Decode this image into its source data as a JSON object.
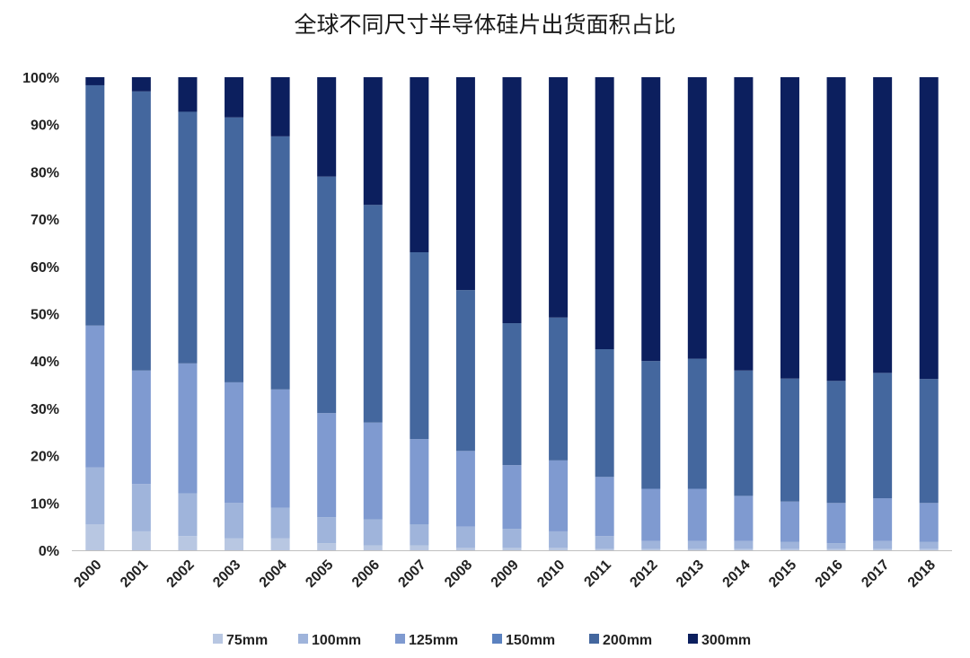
{
  "chart_data": {
    "type": "bar",
    "stacked": true,
    "title": "全球不同尺寸半导体硅片出货面积占比",
    "xlabel": "",
    "ylabel": "",
    "ylim": [
      0,
      100
    ],
    "y_tick_labels": [
      "0%",
      "10%",
      "20%",
      "30%",
      "40%",
      "50%",
      "60%",
      "70%",
      "80%",
      "90%",
      "100%"
    ],
    "grid": false,
    "legend_position": "bottom",
    "categories": [
      "2000",
      "2001",
      "2002",
      "2003",
      "2004",
      "2005",
      "2006",
      "2007",
      "2008",
      "2009",
      "2010",
      "2011",
      "2012",
      "2013",
      "2014",
      "2015",
      "2016",
      "2017",
      "2018"
    ],
    "series": [
      {
        "name": "75mm",
        "color": "#b8c7e2",
        "values": [
          5.5,
          4.0,
          3.0,
          2.5,
          2.5,
          1.5,
          1.0,
          1.0,
          0.5,
          0.5,
          0.5,
          0.3,
          0.3,
          0.3,
          0.3,
          0.3,
          0.3,
          0.3,
          0.3
        ]
      },
      {
        "name": "100mm",
        "color": "#9fb4db",
        "values": [
          12.0,
          10.0,
          9.0,
          7.5,
          6.5,
          5.5,
          5.5,
          4.5,
          4.5,
          4.0,
          3.5,
          2.7,
          1.7,
          1.7,
          1.7,
          1.5,
          1.2,
          1.7,
          1.5
        ]
      },
      {
        "name": "125mm",
        "color": "#7f9ad0",
        "values": [
          30.0,
          24.0,
          27.5,
          25.5,
          25.0,
          22.0,
          20.5,
          18.0,
          16.0,
          13.5,
          15.0,
          12.5,
          11.0,
          11.0,
          9.5,
          8.5,
          8.5,
          9.0,
          8.2
        ]
      },
      {
        "name": "150mm",
        "color": "#5b82c0",
        "values": [
          0,
          0,
          0,
          0,
          0,
          0,
          0,
          0,
          0,
          0,
          0,
          0,
          0,
          0,
          0,
          0,
          0,
          0,
          0
        ]
      },
      {
        "name": "200mm",
        "color": "#44679e",
        "values": [
          50.8,
          59.0,
          53.2,
          56.0,
          53.5,
          50.0,
          46.0,
          39.5,
          34.0,
          30.0,
          30.2,
          27.0,
          27.0,
          27.5,
          26.5,
          26.0,
          25.8,
          26.5,
          26.2
        ]
      },
      {
        "name": "300mm",
        "color": "#0c1f5e",
        "values": [
          1.7,
          3.0,
          7.3,
          8.5,
          12.5,
          21.0,
          27.0,
          37.0,
          45.0,
          52.0,
          50.8,
          57.5,
          60.0,
          59.5,
          62.0,
          63.7,
          64.2,
          62.5,
          63.8
        ]
      }
    ]
  }
}
